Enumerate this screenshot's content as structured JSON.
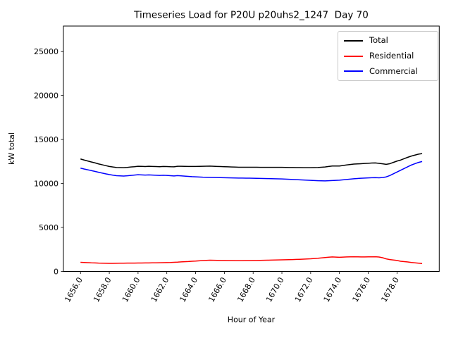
{
  "chart_data": {
    "type": "line",
    "title": "Timeseries Load for P20U p20uhs2_1247  Day 70",
    "xlabel": "Hour of Year",
    "ylabel": "kW total",
    "xlim": [
      1654.8125,
      1680.9375
    ],
    "ylim": [
      0,
      27900
    ],
    "grid": false,
    "legend_position": "upper right",
    "x_tick_rotation": 60,
    "xticks": [
      1656,
      1658,
      1660,
      1662,
      1664,
      1666,
      1668,
      1670,
      1672,
      1674,
      1676,
      1678
    ],
    "xtick_labels": [
      "1656.0",
      "1658.0",
      "1660.0",
      "1662.0",
      "1664.0",
      "1666.0",
      "1668.0",
      "1670.0",
      "1672.0",
      "1674.0",
      "1676.0",
      "1678.0"
    ],
    "yticks": [
      0,
      5000,
      10000,
      15000,
      20000,
      25000
    ],
    "ytick_labels": [
      "0",
      "5000",
      "10000",
      "15000",
      "20000",
      "25000"
    ],
    "x": [
      1656.0,
      1656.25,
      1656.5,
      1656.75,
      1657.0,
      1657.25,
      1657.5,
      1657.75,
      1658.0,
      1658.25,
      1658.5,
      1658.75,
      1659.0,
      1659.25,
      1659.5,
      1659.75,
      1660.0,
      1660.25,
      1660.5,
      1660.75,
      1661.0,
      1661.25,
      1661.5,
      1661.75,
      1662.0,
      1662.25,
      1662.5,
      1662.75,
      1663.0,
      1663.25,
      1663.5,
      1663.75,
      1664.0,
      1664.25,
      1664.5,
      1664.75,
      1665.0,
      1665.25,
      1665.5,
      1665.75,
      1666.0,
      1666.25,
      1666.5,
      1666.75,
      1667.0,
      1667.25,
      1667.5,
      1667.75,
      1668.0,
      1668.25,
      1668.5,
      1668.75,
      1669.0,
      1669.25,
      1669.5,
      1669.75,
      1670.0,
      1670.25,
      1670.5,
      1670.75,
      1671.0,
      1671.25,
      1671.5,
      1671.75,
      1672.0,
      1672.25,
      1672.5,
      1672.75,
      1673.0,
      1673.25,
      1673.5,
      1673.75,
      1674.0,
      1674.25,
      1674.5,
      1674.75,
      1675.0,
      1675.25,
      1675.5,
      1675.75,
      1676.0,
      1676.25,
      1676.5,
      1676.75,
      1677.0,
      1677.25,
      1677.5,
      1677.75,
      1678.0,
      1678.25,
      1678.5,
      1678.75,
      1679.0,
      1679.25,
      1679.5,
      1679.75
    ],
    "series": [
      {
        "name": "Total",
        "color": "#000000",
        "values": [
          12790,
          12670,
          12560,
          12450,
          12350,
          12230,
          12135,
          12035,
          11940,
          11875,
          11820,
          11810,
          11795,
          11830,
          11875,
          11910,
          11960,
          11945,
          11930,
          11955,
          11940,
          11925,
          11910,
          11940,
          11930,
          11910,
          11900,
          11960,
          11960,
          11950,
          11940,
          11940,
          11940,
          11950,
          11960,
          11970,
          11980,
          11960,
          11940,
          11925,
          11910,
          11895,
          11880,
          11865,
          11850,
          11850,
          11850,
          11850,
          11850,
          11845,
          11840,
          11840,
          11840,
          11840,
          11840,
          11840,
          11840,
          11830,
          11820,
          11815,
          11810,
          11805,
          11800,
          11800,
          11800,
          11810,
          11820,
          11850,
          11880,
          11940,
          11990,
          11990,
          11990,
          12050,
          12110,
          12160,
          12210,
          12230,
          12250,
          12275,
          12300,
          12325,
          12340,
          12290,
          12240,
          12180,
          12250,
          12400,
          12550,
          12660,
          12820,
          12980,
          13120,
          13230,
          13340,
          13400
        ]
      },
      {
        "name": "Residential",
        "color": "#ff0000",
        "values": [
          1040,
          1020,
          1000,
          980,
          970,
          950,
          945,
          935,
          920,
          925,
          930,
          940,
          945,
          950,
          955,
          950,
          960,
          965,
          970,
          975,
          980,
          985,
          990,
          1000,
          1010,
          1020,
          1040,
          1060,
          1090,
          1110,
          1130,
          1160,
          1180,
          1210,
          1240,
          1260,
          1280,
          1270,
          1260,
          1255,
          1250,
          1245,
          1240,
          1235,
          1230,
          1235,
          1240,
          1245,
          1250,
          1255,
          1260,
          1270,
          1280,
          1290,
          1300,
          1310,
          1320,
          1330,
          1340,
          1355,
          1370,
          1385,
          1400,
          1420,
          1440,
          1470,
          1500,
          1540,
          1580,
          1620,
          1650,
          1630,
          1610,
          1630,
          1650,
          1660,
          1670,
          1660,
          1650,
          1655,
          1660,
          1665,
          1670,
          1640,
          1560,
          1430,
          1350,
          1300,
          1250,
          1160,
          1120,
          1080,
          1020,
          980,
          940,
          900
        ]
      },
      {
        "name": "Commercial",
        "color": "#0000ff",
        "values": [
          11750,
          11650,
          11560,
          11470,
          11380,
          11280,
          11190,
          11100,
          11020,
          10950,
          10890,
          10870,
          10850,
          10880,
          10920,
          10960,
          11000,
          10980,
          10960,
          10980,
          10960,
          10940,
          10920,
          10940,
          10920,
          10890,
          10860,
          10900,
          10870,
          10840,
          10810,
          10780,
          10760,
          10740,
          10720,
          10710,
          10700,
          10690,
          10680,
          10670,
          10660,
          10650,
          10640,
          10630,
          10620,
          10615,
          10610,
          10605,
          10600,
          10590,
          10580,
          10570,
          10560,
          10550,
          10540,
          10530,
          10520,
          10500,
          10480,
          10460,
          10440,
          10420,
          10400,
          10380,
          10360,
          10340,
          10320,
          10310,
          10300,
          10320,
          10340,
          10360,
          10380,
          10420,
          10460,
          10500,
          10540,
          10570,
          10600,
          10620,
          10640,
          10660,
          10670,
          10650,
          10680,
          10750,
          10900,
          11100,
          11300,
          11500,
          11700,
          11900,
          12100,
          12250,
          12400,
          12500
        ]
      }
    ]
  }
}
